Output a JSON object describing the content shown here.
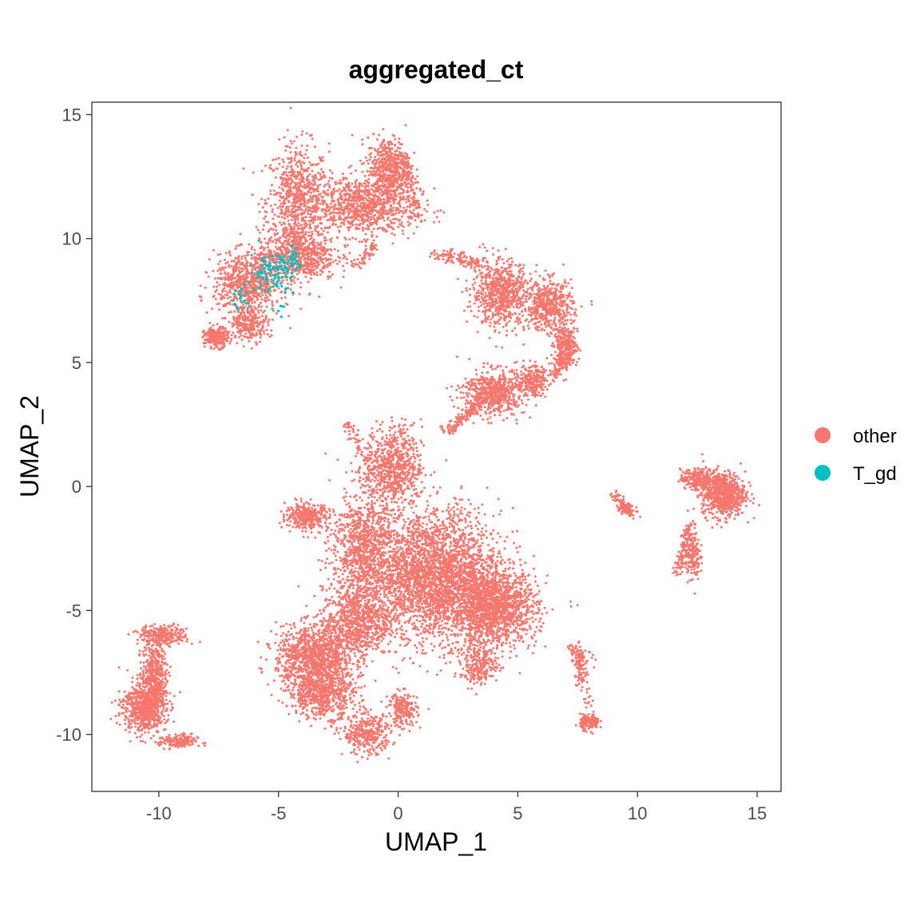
{
  "chart_data": {
    "type": "scatter",
    "title": "aggregated_ct",
    "xlabel": "UMAP_1",
    "ylabel": "UMAP_2",
    "xlim": [
      -12.8,
      16.0
    ],
    "ylim": [
      -12.3,
      15.5
    ],
    "xticks": [
      -10,
      -5,
      0,
      5,
      10,
      15
    ],
    "xtick_labels": [
      "-10",
      "-5",
      "0",
      "5",
      "10",
      "15"
    ],
    "yticks": [
      -10,
      -5,
      0,
      5,
      10,
      15
    ],
    "ytick_labels": [
      "-10",
      "-5",
      "0",
      "5",
      "10",
      "15"
    ],
    "grid": false,
    "legend_position": "right",
    "series": [
      {
        "name": "other",
        "color": "#F8766D",
        "clusters": [
          {
            "cx": -4.2,
            "cy": 11.5,
            "rx": 1.3,
            "ry": 2.3,
            "n": 700
          },
          {
            "cx": -1.5,
            "cy": 11.3,
            "rx": 2.3,
            "ry": 1.2,
            "n": 900
          },
          {
            "cx": -0.4,
            "cy": 12.8,
            "rx": 0.9,
            "ry": 1.3,
            "n": 500
          },
          {
            "cx": -4.2,
            "cy": 9.3,
            "rx": 1.6,
            "ry": 1.0,
            "n": 600
          },
          {
            "cx": -6.3,
            "cy": 8.2,
            "rx": 1.4,
            "ry": 1.2,
            "n": 700
          },
          {
            "cx": -7.6,
            "cy": 6.0,
            "rx": 0.5,
            "ry": 0.4,
            "n": 250
          },
          {
            "cx": -6.2,
            "cy": 6.6,
            "rx": 0.8,
            "ry": 0.7,
            "n": 250
          },
          {
            "cx": 4.3,
            "cy": 7.8,
            "rx": 1.2,
            "ry": 1.3,
            "n": 700
          },
          {
            "cx": 6.3,
            "cy": 7.3,
            "rx": 1.0,
            "ry": 1.0,
            "n": 500
          },
          {
            "cx": 7.0,
            "cy": 5.6,
            "rx": 0.5,
            "ry": 0.9,
            "n": 300
          },
          {
            "cx": 4.0,
            "cy": 3.8,
            "rx": 1.3,
            "ry": 0.9,
            "n": 600
          },
          {
            "cx": 5.6,
            "cy": 4.3,
            "rx": 0.7,
            "ry": 0.6,
            "n": 200
          },
          {
            "cx": 1.5,
            "cy": -3.6,
            "rx": 2.8,
            "ry": 2.6,
            "n": 3000
          },
          {
            "cx": 4.0,
            "cy": -4.9,
            "rx": 1.8,
            "ry": 1.5,
            "n": 1400
          },
          {
            "cx": -1.5,
            "cy": -2.5,
            "rx": 1.3,
            "ry": 2.4,
            "n": 900
          },
          {
            "cx": -0.2,
            "cy": 0.8,
            "rx": 1.2,
            "ry": 1.6,
            "n": 700
          },
          {
            "cx": -1.8,
            "cy": -5.5,
            "rx": 1.4,
            "ry": 1.4,
            "n": 700
          },
          {
            "cx": -3.5,
            "cy": -6.8,
            "rx": 1.6,
            "ry": 1.2,
            "n": 1000
          },
          {
            "cx": -3.2,
            "cy": -8.3,
            "rx": 1.4,
            "ry": 1.0,
            "n": 700
          },
          {
            "cx": -3.8,
            "cy": -1.2,
            "rx": 0.9,
            "ry": 0.5,
            "n": 350
          },
          {
            "cx": -1.3,
            "cy": -10.0,
            "rx": 1.0,
            "ry": 0.8,
            "n": 350
          },
          {
            "cx": 0.2,
            "cy": -9.0,
            "rx": 0.6,
            "ry": 0.7,
            "n": 200
          },
          {
            "cx": 3.4,
            "cy": -7.2,
            "rx": 0.8,
            "ry": 0.8,
            "n": 250
          },
          {
            "cx": -10.6,
            "cy": -8.9,
            "rx": 0.9,
            "ry": 1.0,
            "n": 700
          },
          {
            "cx": -10.2,
            "cy": -7.5,
            "rx": 0.5,
            "ry": 1.3,
            "n": 400
          },
          {
            "cx": -9.8,
            "cy": -6.0,
            "rx": 1.0,
            "ry": 0.4,
            "n": 250
          },
          {
            "cx": -9.2,
            "cy": -10.3,
            "rx": 0.8,
            "ry": 0.3,
            "n": 150
          },
          {
            "cx": 13.6,
            "cy": -0.3,
            "rx": 0.9,
            "ry": 0.9,
            "n": 700
          },
          {
            "cx": 12.6,
            "cy": 0.3,
            "rx": 0.8,
            "ry": 0.4,
            "n": 250
          },
          {
            "cx": 12.3,
            "cy": -2.8,
            "rx": 0.3,
            "ry": 1.0,
            "n": 150
          },
          {
            "cx": 8.0,
            "cy": -9.5,
            "rx": 0.4,
            "ry": 0.3,
            "n": 150
          },
          {
            "cx": 7.6,
            "cy": -7.3,
            "rx": 0.2,
            "ry": 0.8,
            "n": 60
          },
          {
            "cx": 9.5,
            "cy": -0.9,
            "rx": 0.4,
            "ry": 0.3,
            "n": 70
          }
        ],
        "paths": [
          {
            "from": [
              1.5,
              9.4
            ],
            "to": [
              3.5,
              9.0
            ],
            "n": 120
          },
          {
            "from": [
              6.5,
              4.4
            ],
            "to": [
              7.0,
              5.5
            ],
            "n": 60
          },
          {
            "from": [
              2.0,
              2.2
            ],
            "to": [
              3.5,
              3.4
            ],
            "n": 150
          },
          {
            "from": [
              0.2,
              13.5
            ],
            "to": [
              0.8,
              10.8
            ],
            "n": 100
          },
          {
            "from": [
              -1.8,
              8.8
            ],
            "to": [
              -1.0,
              9.8
            ],
            "n": 60
          },
          {
            "from": [
              12.2,
              -1.5
            ],
            "to": [
              11.7,
              -3.5
            ],
            "n": 120
          },
          {
            "from": [
              7.4,
              -6.6
            ],
            "to": [
              8.0,
              -8.8
            ],
            "n": 50
          },
          {
            "from": [
              7.2,
              -6.5
            ],
            "to": [
              8.1,
              -7.0
            ],
            "n": 40
          },
          {
            "from": [
              9.0,
              -0.3
            ],
            "to": [
              9.9,
              -1.3
            ],
            "n": 60
          },
          {
            "from": [
              -2.2,
              2.6
            ],
            "to": [
              -1.0,
              0.5
            ],
            "n": 60
          }
        ]
      },
      {
        "name": "T_gd",
        "color": "#00BFC4",
        "clusters": [
          {
            "cx": -5.2,
            "cy": 8.7,
            "rx": 1.0,
            "ry": 0.8,
            "n": 110
          },
          {
            "cx": -6.6,
            "cy": 7.6,
            "rx": 0.5,
            "ry": 0.5,
            "n": 20
          },
          {
            "cx": -4.5,
            "cy": 9.2,
            "rx": 0.4,
            "ry": 0.5,
            "n": 25
          },
          {
            "cx": -5.0,
            "cy": 7.2,
            "rx": 0.3,
            "ry": 0.3,
            "n": 6
          }
        ],
        "paths": []
      }
    ]
  }
}
